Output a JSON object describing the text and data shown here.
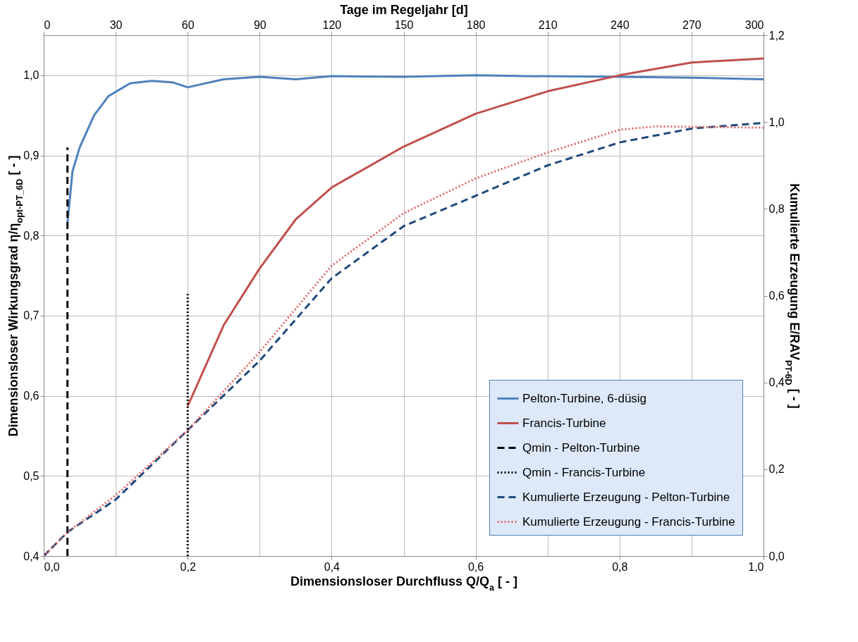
{
  "chart_data": {
    "type": "line",
    "xlabel": "Dimensionsloser Durchfluss Q/Q$_{a}$ [ - ]",
    "ylabel": "Dimensionsloser Wirkungsgrad η/η$_{opt-PT_6D}$ [ - ]",
    "y2label": "Kumulierte Erzeugung E/RAV$_{PT-6D}$ [ - ]",
    "x2label": "Tage im Regeljahr [d]",
    "xlim": [
      0,
      1
    ],
    "xticks": [
      {
        "value": 0,
        "label": "0,0"
      },
      {
        "value": 0.2,
        "label": "0,2"
      },
      {
        "value": 0.4,
        "label": "0,4"
      },
      {
        "value": 0.6,
        "label": "0,6"
      },
      {
        "value": 0.8,
        "label": "0,8"
      },
      {
        "value": 1,
        "label": "1,0"
      }
    ],
    "ylim": [
      0.4,
      1.05
    ],
    "yticks": [
      {
        "value": 0.4,
        "label": "0,4"
      },
      {
        "value": 0.5,
        "label": "0,5"
      },
      {
        "value": 0.6,
        "label": "0,6"
      },
      {
        "value": 0.7,
        "label": "0,7"
      },
      {
        "value": 0.8,
        "label": "0,8"
      },
      {
        "value": 0.9,
        "label": "0,9"
      },
      {
        "value": 1,
        "label": "1,0"
      }
    ],
    "y2lim": [
      0,
      1.2
    ],
    "y2ticks": [
      {
        "value": 0,
        "label": "0,0"
      },
      {
        "value": 0.2,
        "label": "0,2"
      },
      {
        "value": 0.4,
        "label": "0,4"
      },
      {
        "value": 0.6,
        "label": "0,6"
      },
      {
        "value": 0.8,
        "label": "0,8"
      },
      {
        "value": 1,
        "label": "1,0"
      },
      {
        "value": 1.2,
        "label": "1,2"
      }
    ],
    "x2lim": [
      0,
      300
    ],
    "x2ticks": [
      0,
      30,
      60,
      90,
      120,
      150,
      180,
      210,
      240,
      270,
      300
    ],
    "grid": true,
    "legend": "bottom right",
    "series": [
      {
        "name": "Pelton-Turbine, 6-düsig",
        "color": "#4f81bd",
        "line_style": "solid",
        "x": [
          0.033,
          0.04,
          0.05,
          0.07,
          0.09,
          0.12,
          0.15,
          0.18,
          0.2,
          0.25,
          0.3,
          0.35,
          0.4,
          0.5,
          0.6,
          0.67,
          0.8,
          0.9,
          1.0
        ],
        "values": [
          0.816,
          0.88,
          0.91,
          0.95,
          0.974,
          0.99,
          0.993,
          0.991,
          0.985,
          0.995,
          0.998,
          0.995,
          0.999,
          0.998,
          1.0,
          0.999,
          0.998,
          0.997,
          0.995
        ]
      },
      {
        "name": "Francis-Turbine",
        "color": "#c0504d",
        "line_style": "solid",
        "x": [
          0.2,
          0.25,
          0.3,
          0.35,
          0.4,
          0.5,
          0.6,
          0.7,
          0.8,
          0.9,
          1.0
        ],
        "values": [
          0.587,
          0.688,
          0.759,
          0.82,
          0.86,
          0.911,
          0.952,
          0.98,
          1.0,
          1.016,
          1.021
        ]
      },
      {
        "name": "Qmin - Pelton-Turbine",
        "color": "#000000",
        "line_style": "dashed",
        "x": [
          0.033,
          0.033
        ],
        "values": [
          0.4,
          0.91
        ]
      },
      {
        "name": "Qmin - Francis-Turbine",
        "color": "#000000",
        "line_style": "dotted",
        "x": [
          0.2,
          0.2
        ],
        "values": [
          0.4,
          0.728
        ]
      },
      {
        "name": "Kumulierte Erzeugung - Pelton-Turbine",
        "color": "#1f497d",
        "line_style": "dashed",
        "axis": "y2",
        "x": [
          0,
          0.033,
          0.1,
          0.2,
          0.3,
          0.4,
          0.5,
          0.6,
          0.7,
          0.8,
          0.9,
          1.0
        ],
        "values": [
          0,
          0.055,
          0.13,
          0.29,
          0.45,
          0.64,
          0.76,
          0.83,
          0.9,
          0.953,
          0.985,
          0.998
        ]
      },
      {
        "name": "Kumulierte Erzeugung - Francis-Turbine",
        "color": "#e06666",
        "line_style": "dotted",
        "axis": "y2",
        "x": [
          0,
          0.033,
          0.1,
          0.2,
          0.3,
          0.4,
          0.5,
          0.6,
          0.7,
          0.8,
          0.85,
          1.0
        ],
        "values": [
          0,
          0.055,
          0.14,
          0.29,
          0.47,
          0.669,
          0.79,
          0.87,
          0.93,
          0.982,
          0.99,
          0.987
        ]
      }
    ]
  }
}
